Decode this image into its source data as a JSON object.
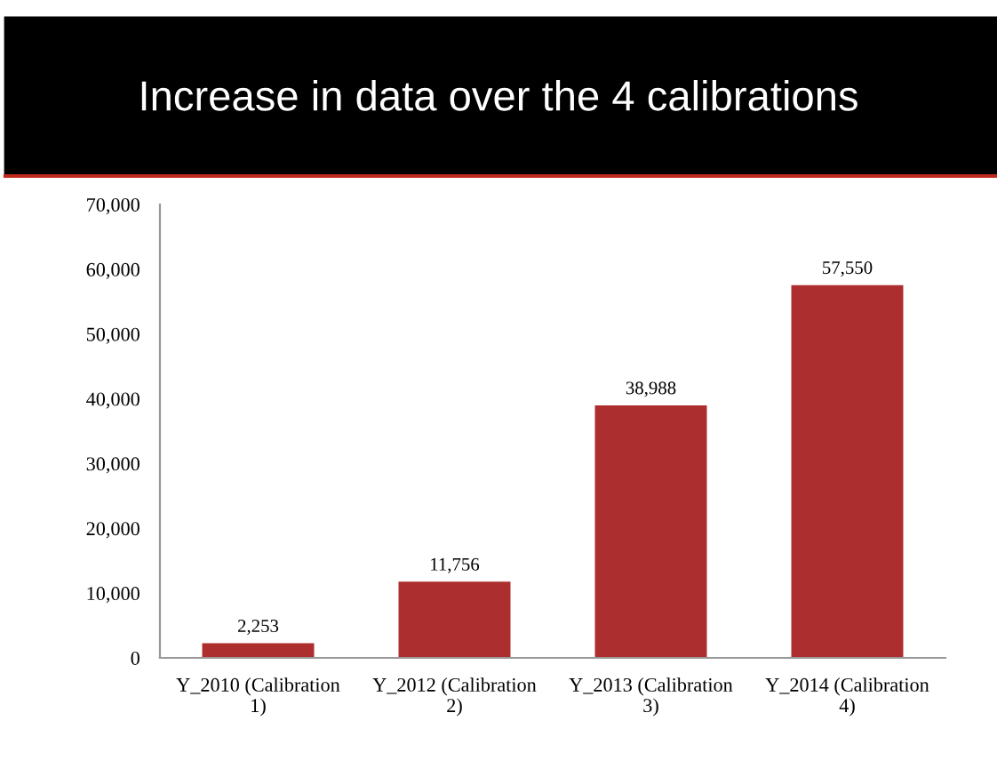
{
  "chart_data": {
    "type": "bar",
    "title": "Increase in data over the 4 calibrations",
    "categories": [
      "Y_2010 (Calibration 1)",
      "Y_2012 (Calibration 2)",
      "Y_2013 (Calibration 3)",
      "Y_2014 (Calibration 4)"
    ],
    "values": [
      2253,
      11756,
      38988,
      57550
    ],
    "color": "#ad2e2e",
    "ylim": [
      0,
      70000
    ],
    "yticks": [
      {
        "value": 0,
        "label": "0"
      },
      {
        "value": 10000,
        "label": "10,000"
      },
      {
        "value": 20000,
        "label": "20,000"
      },
      {
        "value": 30000,
        "label": "30,000"
      },
      {
        "value": 40000,
        "label": "40,000"
      },
      {
        "value": 50000,
        "label": "50,000"
      },
      {
        "value": 60000,
        "label": "60,000"
      },
      {
        "value": 70000,
        "label": "70,000"
      }
    ],
    "value_labels": [
      "2,253",
      "11,756",
      "38,988",
      "57,550"
    ],
    "grid": false,
    "legend": false
  }
}
